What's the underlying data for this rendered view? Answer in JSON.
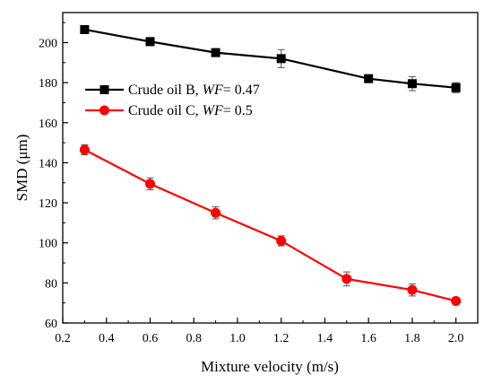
{
  "chart_data": {
    "type": "line",
    "xlabel": "Mixture velocity (m/s)",
    "ylabel": "SMD (μm)",
    "xlim": [
      0.2,
      2.1
    ],
    "ylim": [
      60,
      215
    ],
    "xticks": [
      "0.2",
      "0.4",
      "0.6",
      "0.8",
      "1.0",
      "1.2",
      "1.4",
      "1.6",
      "1.8",
      "2.0"
    ],
    "yticks": [
      "60",
      "80",
      "100",
      "120",
      "140",
      "160",
      "180",
      "200"
    ],
    "grid": false,
    "legend_position": "upper-left",
    "series": [
      {
        "name_prefix": "Crude oil B, ",
        "name_italic": "WF",
        "name_suffix": "= 0.47",
        "color": "#000000",
        "marker": "square",
        "x": [
          0.3,
          0.6,
          0.9,
          1.2,
          1.6,
          1.8,
          2.0
        ],
        "y": [
          206.5,
          200.5,
          195,
          192,
          182,
          179.5,
          177.5
        ],
        "err": [
          1.5,
          2,
          1.5,
          4.5,
          1,
          3.5,
          2.5
        ]
      },
      {
        "name_prefix": "Crude oil C, ",
        "name_italic": "WF",
        "name_suffix": "= 0.5",
        "color": "#ff0000",
        "marker": "circle",
        "x": [
          0.3,
          0.6,
          0.9,
          1.2,
          1.5,
          1.8,
          2.0
        ],
        "y": [
          146.5,
          129.5,
          115,
          101,
          82,
          76.5,
          71
        ],
        "err": [
          2.5,
          3,
          3,
          2.5,
          3.5,
          3,
          1.5
        ]
      }
    ]
  }
}
